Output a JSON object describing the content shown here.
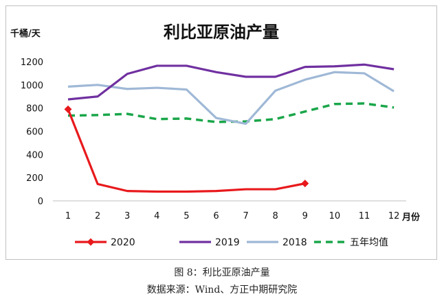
{
  "chart_data": {
    "type": "line",
    "title": "利比亚原油产量",
    "ylabel": "千桶/天",
    "xlabel": "月份",
    "categories": [
      "1",
      "2",
      "3",
      "4",
      "5",
      "6",
      "7",
      "8",
      "9",
      "10",
      "11",
      "12"
    ],
    "yticks": [
      "0",
      "200",
      "400",
      "600",
      "800",
      "1000",
      "1200"
    ],
    "ylim": [
      0,
      1300
    ],
    "grid": false,
    "legend_position": "bottom",
    "series": [
      {
        "name": "2020",
        "color": "#e8191c",
        "style": "solid-diamond",
        "values": [
          790,
          145,
          85,
          80,
          80,
          85,
          100,
          100,
          150,
          null,
          null,
          null
        ]
      },
      {
        "name": "2019",
        "color": "#7030a0",
        "style": "solid",
        "values": [
          875,
          900,
          1095,
          1165,
          1165,
          1110,
          1070,
          1070,
          1155,
          1160,
          1175,
          1135
        ]
      },
      {
        "name": "2018",
        "color": "#9fb8d6",
        "style": "solid",
        "values": [
          985,
          1000,
          965,
          975,
          960,
          715,
          665,
          950,
          1045,
          1110,
          1100,
          945
        ]
      },
      {
        "name": "五年均值",
        "color": "#1aa64a",
        "style": "dashed",
        "values": [
          735,
          740,
          750,
          705,
          710,
          680,
          685,
          705,
          770,
          835,
          840,
          805
        ]
      }
    ]
  },
  "captions": {
    "figure": "图 8：利比亚原油产量",
    "source": "数据来源：Wind、方正中期研究院"
  }
}
